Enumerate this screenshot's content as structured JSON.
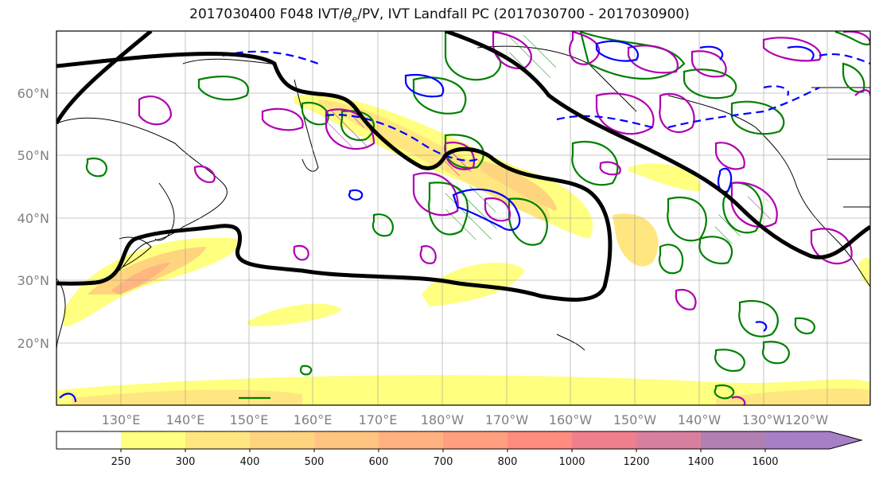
{
  "title_main": "2017030400 F048 IVT/",
  "title_theta": "θ",
  "title_sub": "e",
  "title_rest": "/PV, IVT Landfall PC (2017030700 - 2017030900)",
  "lat_labels": [
    "60°N",
    "50°N",
    "40°N",
    "30°N",
    "20°N"
  ],
  "lon_labels": [
    "130°E",
    "140°E",
    "150°E",
    "160°E",
    "170°E",
    "180°W",
    "170°W",
    "160°W",
    "150°W",
    "140°W",
    "130°W",
    "120°W"
  ],
  "colorbar": {
    "ticks": [
      "250",
      "300",
      "400",
      "500",
      "600",
      "700",
      "800",
      "1000",
      "1200",
      "1400",
      "1600"
    ],
    "colors": [
      "#ffffff",
      "#ffff80",
      "#ffe680",
      "#ffd47f",
      "#ffc47f",
      "#ffb27f",
      "#ff9f7f",
      "#ff8c7f",
      "#f07f8c",
      "#d87f9f",
      "#b27fb2",
      "#a77fc6"
    ]
  },
  "legend_colors": {
    "pv_contour": "#000000",
    "theta_e": "#008000",
    "wind": "#0000ff",
    "pc": "#b000b0"
  }
}
